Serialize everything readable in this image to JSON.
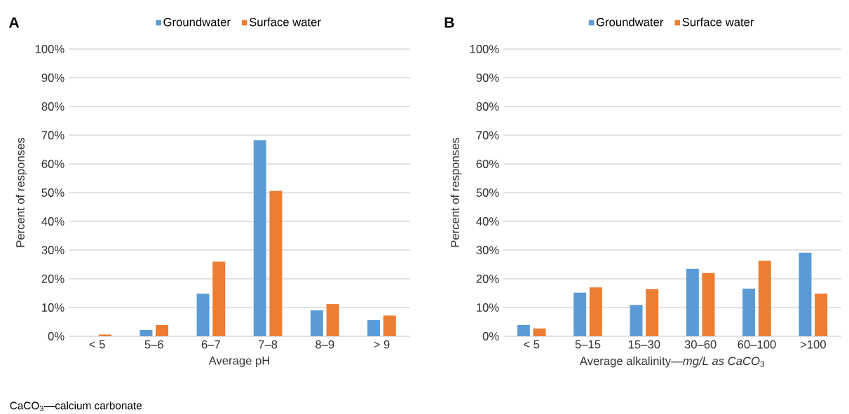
{
  "chart_data": [
    {
      "type": "bar",
      "title": "A",
      "xlabel": "Average pH",
      "ylabel": "Percent of responses",
      "categories": [
        "< 5",
        "5–6",
        "6–7",
        "7–8",
        "8–9",
        "> 9"
      ],
      "series": [
        {
          "name": "Groundwater",
          "color": "#5b9bd5",
          "values": [
            0,
            2.2,
            14.8,
            68.2,
            9.0,
            5.6
          ]
        },
        {
          "name": "Surface water",
          "color": "#ed7d31",
          "values": [
            0.6,
            3.9,
            26.0,
            50.6,
            11.2,
            7.2
          ]
        }
      ],
      "ylim": [
        0,
        100
      ],
      "yticks": [
        {
          "value": 0,
          "label": "0%"
        },
        {
          "value": 10,
          "label": "10%"
        },
        {
          "value": 20,
          "label": "20%"
        },
        {
          "value": 30,
          "label": "30%"
        },
        {
          "value": 40,
          "label": "40%"
        },
        {
          "value": 50,
          "label": "50%"
        },
        {
          "value": 60,
          "label": "60%"
        },
        {
          "value": 70,
          "label": "70%"
        },
        {
          "value": 80,
          "label": "80%"
        },
        {
          "value": 90,
          "label": "90%"
        },
        {
          "value": 100,
          "label": "100%"
        }
      ],
      "grid": "y",
      "legend": "top",
      "annotations": [
        "CaCO$_{3}$—calcium carbonate"
      ]
    },
    {
      "type": "bar",
      "title": "B",
      "xlabel": "Average alkalinity—*mg/L as CaCO*$_{3}$",
      "ylabel": "Percent of responses",
      "categories": [
        "< 5",
        "5–15",
        "15–30",
        "30–60",
        "60–100",
        ">100"
      ],
      "series": [
        {
          "name": "Groundwater",
          "color": "#5b9bd5",
          "values": [
            3.9,
            15.2,
            10.9,
            23.5,
            16.6,
            29.1
          ]
        },
        {
          "name": "Surface water",
          "color": "#ed7d31",
          "values": [
            2.7,
            17.0,
            16.4,
            22.0,
            26.3,
            14.8
          ]
        }
      ],
      "ylim": [
        0,
        100
      ],
      "yticks": [
        {
          "value": 0,
          "label": "0%"
        },
        {
          "value": 10,
          "label": "10%"
        },
        {
          "value": 20,
          "label": "20%"
        },
        {
          "value": 30,
          "label": "30%"
        },
        {
          "value": 40,
          "label": "40%"
        },
        {
          "value": 50,
          "label": "50%"
        },
        {
          "value": 60,
          "label": "60%"
        },
        {
          "value": 70,
          "label": "70%"
        },
        {
          "value": 80,
          "label": "80%"
        },
        {
          "value": 90,
          "label": "90%"
        },
        {
          "value": 100,
          "label": "100%"
        }
      ],
      "grid": "y",
      "legend": "top"
    }
  ]
}
